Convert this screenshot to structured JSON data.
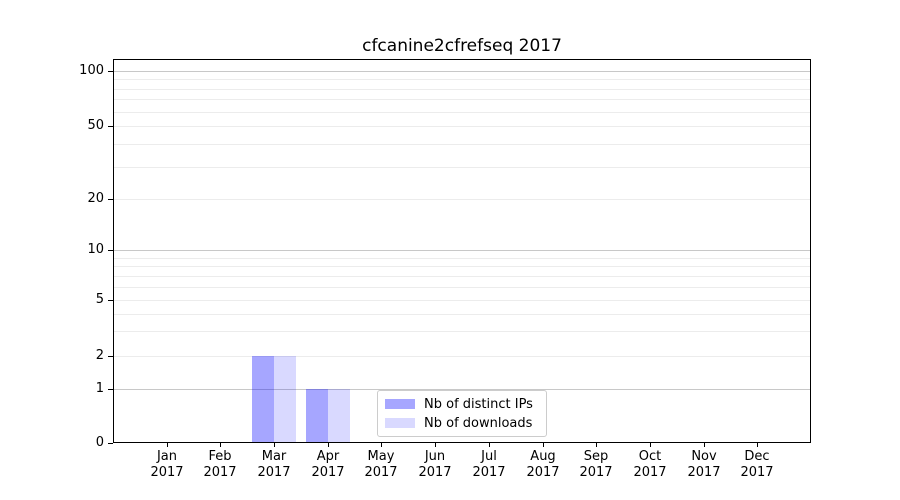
{
  "chart": {
    "title": "cfcanine2cfrefseq 2017"
  },
  "chart_data": {
    "type": "bar",
    "title": "cfcanine2cfrefseq 2017",
    "categories": [
      "Jan 2017",
      "Feb 2017",
      "Mar 2017",
      "Apr 2017",
      "May 2017",
      "Jun 2017",
      "Jul 2017",
      "Aug 2017",
      "Sep 2017",
      "Oct 2017",
      "Nov 2017",
      "Dec 2017"
    ],
    "series": [
      {
        "name": "Nb of distinct IPs",
        "color": "rgba(0,0,255,0.35)",
        "values": [
          0,
          0,
          2,
          1,
          0,
          0,
          0,
          0,
          0,
          0,
          0,
          0
        ]
      },
      {
        "name": "Nb of downloads",
        "color": "rgba(0,0,255,0.15)",
        "values": [
          0,
          0,
          2,
          1,
          0,
          0,
          0,
          0,
          0,
          0,
          0,
          0
        ]
      }
    ],
    "xlabel": "",
    "ylabel": "",
    "yscale": "symlog",
    "ylim": [
      0,
      117
    ],
    "y_tick_values": [
      0,
      1,
      2,
      5,
      10,
      20,
      50,
      100
    ],
    "y_tick_labels": [
      "0",
      "1",
      "2",
      "5",
      "10",
      "20",
      "50",
      "100"
    ],
    "y_major_gridlines": [
      1,
      10,
      100
    ],
    "y_minor_gridlines": [
      2,
      3,
      4,
      5,
      6,
      7,
      8,
      9,
      20,
      30,
      40,
      50,
      60,
      70,
      80,
      90
    ],
    "grid": "horizontal",
    "legend_position": "lower center inside axes",
    "spine_color": "#000000",
    "major_grid_color": "#c8c8c8",
    "minor_grid_color": "#ececec"
  }
}
